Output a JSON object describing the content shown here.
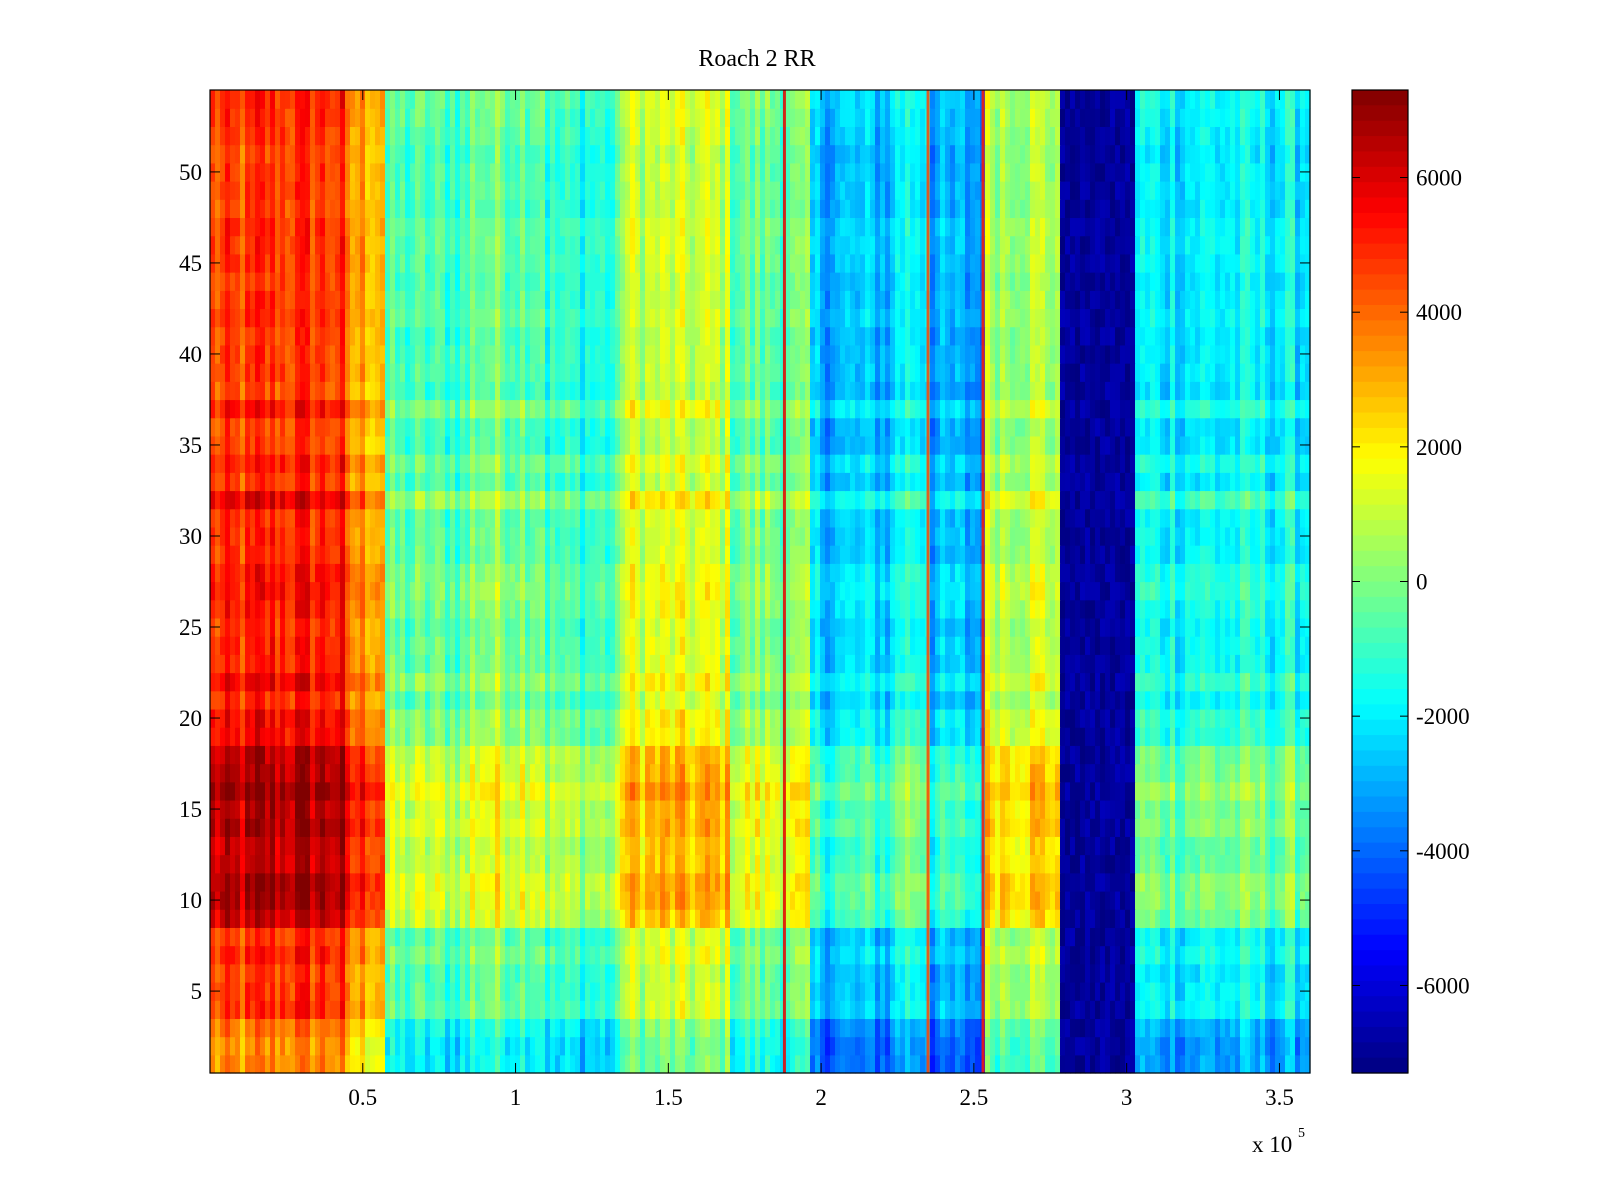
{
  "chart_data": {
    "type": "heatmap",
    "title": "Roach 2 RR",
    "xlabel": "",
    "ylabel": "",
    "xlim": [
      0,
      3.6
    ],
    "ylim": [
      0.5,
      54.5
    ],
    "x_multiplier_label": "x 10",
    "x_multiplier_exponent": "5",
    "x_ticks": [
      0.5,
      1,
      1.5,
      2,
      2.5,
      3,
      3.5
    ],
    "x_tick_labels": [
      "0.5",
      "1",
      "1.5",
      "2",
      "2.5",
      "3",
      "3.5"
    ],
    "y_ticks": [
      5,
      10,
      15,
      20,
      25,
      30,
      35,
      40,
      45,
      50
    ],
    "y_tick_labels": [
      "5",
      "10",
      "15",
      "20",
      "25",
      "30",
      "35",
      "40",
      "45",
      "50"
    ],
    "rows": 54,
    "colormap": "jet",
    "colorbar": {
      "clim": [
        -7300,
        7300
      ],
      "ticks": [
        -6000,
        -4000,
        -2000,
        0,
        2000,
        4000,
        6000
      ],
      "tick_labels": [
        "-6000",
        "-4000",
        "-2000",
        "0",
        "2000",
        "4000",
        "6000"
      ]
    },
    "column_bands": [
      {
        "x_start": 0.0,
        "x_end": 0.15,
        "value": 4800
      },
      {
        "x_start": 0.15,
        "x_end": 0.45,
        "value": 5200
      },
      {
        "x_start": 0.45,
        "x_end": 0.58,
        "value": 3600
      },
      {
        "x_start": 0.58,
        "x_end": 0.85,
        "value": -400
      },
      {
        "x_start": 0.85,
        "x_end": 1.1,
        "value": 300
      },
      {
        "x_start": 1.1,
        "x_end": 1.35,
        "value": -800
      },
      {
        "x_start": 1.35,
        "x_end": 1.7,
        "value": 1400
      },
      {
        "x_start": 1.7,
        "x_end": 1.97,
        "value": 100
      },
      {
        "x_start": 1.97,
        "x_end": 2.25,
        "value": -2300
      },
      {
        "x_start": 2.25,
        "x_end": 2.35,
        "value": -1200
      },
      {
        "x_start": 2.35,
        "x_end": 2.54,
        "value": -2700
      },
      {
        "x_start": 2.54,
        "x_end": 2.79,
        "value": 1200
      },
      {
        "x_start": 2.79,
        "x_end": 3.03,
        "value": -6900
      },
      {
        "x_start": 3.03,
        "x_end": 3.6,
        "value": -1500
      }
    ],
    "row_offsets": [
      {
        "y_start": 0.5,
        "y_end": 3.5,
        "offset": -1400
      },
      {
        "y_start": 3.5,
        "y_end": 8.5,
        "offset": -400
      },
      {
        "y_start": 8.5,
        "y_end": 18.5,
        "offset": 1500
      },
      {
        "y_start": 18.5,
        "y_end": 31.5,
        "offset": 0
      },
      {
        "y_start": 31.5,
        "y_end": 32.5,
        "offset": 900
      },
      {
        "y_start": 32.5,
        "y_end": 54.5,
        "offset": -300
      }
    ],
    "vertical_streaks": [
      {
        "x": 1.88,
        "value": 5800
      },
      {
        "x": 2.35,
        "value": 4500
      },
      {
        "x": 2.53,
        "value": 5200
      }
    ]
  }
}
